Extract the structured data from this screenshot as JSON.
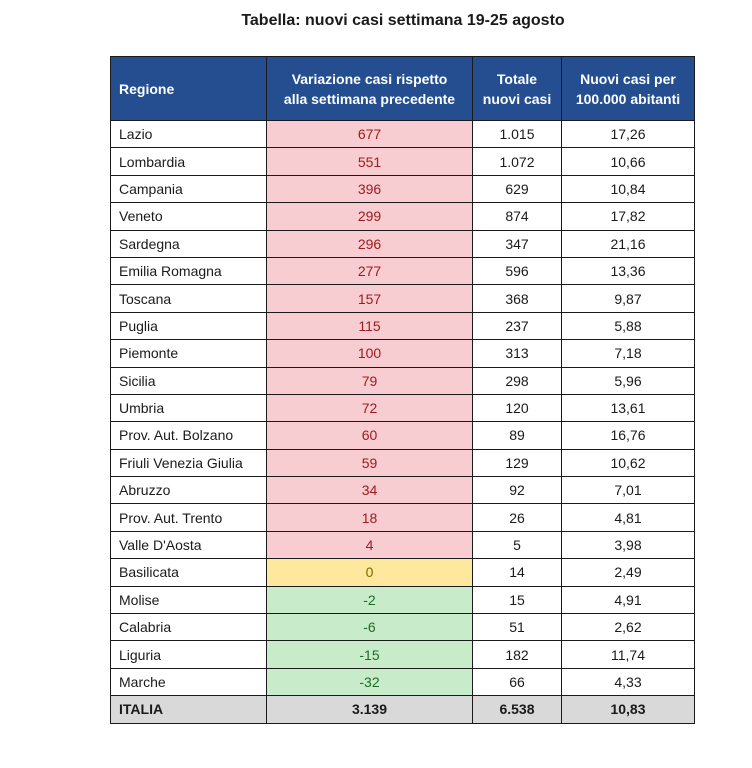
{
  "title": "Tabella: nuovi casi settimana 19-25 agosto",
  "table": {
    "headers": [
      "Regione",
      "Variazione casi rispetto alla settimana precedente",
      "Totale nuovi casi",
      "Nuovi casi per 100.000 abitanti"
    ],
    "header_lines": {
      "col2": [
        "Variazione casi rispetto",
        "alla settimana precedente"
      ],
      "col3": [
        "Totale",
        "nuovi casi"
      ],
      "col4": [
        "Nuovi casi per",
        "100.000 abitanti"
      ]
    },
    "rows": [
      {
        "region": "Lazio",
        "variation": "677",
        "total": "1.015",
        "per100k": "17,26",
        "trend": "pos"
      },
      {
        "region": "Lombardia",
        "variation": "551",
        "total": "1.072",
        "per100k": "10,66",
        "trend": "pos"
      },
      {
        "region": "Campania",
        "variation": "396",
        "total": "629",
        "per100k": "10,84",
        "trend": "pos"
      },
      {
        "region": "Veneto",
        "variation": "299",
        "total": "874",
        "per100k": "17,82",
        "trend": "pos"
      },
      {
        "region": "Sardegna",
        "variation": "296",
        "total": "347",
        "per100k": "21,16",
        "trend": "pos"
      },
      {
        "region": "Emilia Romagna",
        "variation": "277",
        "total": "596",
        "per100k": "13,36",
        "trend": "pos"
      },
      {
        "region": "Toscana",
        "variation": "157",
        "total": "368",
        "per100k": "9,87",
        "trend": "pos"
      },
      {
        "region": "Puglia",
        "variation": "115",
        "total": "237",
        "per100k": "5,88",
        "trend": "pos"
      },
      {
        "region": "Piemonte",
        "variation": "100",
        "total": "313",
        "per100k": "7,18",
        "trend": "pos"
      },
      {
        "region": "Sicilia",
        "variation": "79",
        "total": "298",
        "per100k": "5,96",
        "trend": "pos"
      },
      {
        "region": "Umbria",
        "variation": "72",
        "total": "120",
        "per100k": "13,61",
        "trend": "pos"
      },
      {
        "region": "Prov. Aut. Bolzano",
        "variation": "60",
        "total": "89",
        "per100k": "16,76",
        "trend": "pos"
      },
      {
        "region": "Friuli Venezia Giulia",
        "variation": "59",
        "total": "129",
        "per100k": "10,62",
        "trend": "pos"
      },
      {
        "region": "Abruzzo",
        "variation": "34",
        "total": "92",
        "per100k": "7,01",
        "trend": "pos"
      },
      {
        "region": "Prov. Aut. Trento",
        "variation": "18",
        "total": "26",
        "per100k": "4,81",
        "trend": "pos"
      },
      {
        "region": "Valle D'Aosta",
        "variation": "4",
        "total": "5",
        "per100k": "3,98",
        "trend": "pos"
      },
      {
        "region": "Basilicata",
        "variation": "0",
        "total": "14",
        "per100k": "2,49",
        "trend": "zero"
      },
      {
        "region": "Molise",
        "variation": "-2",
        "total": "15",
        "per100k": "4,91",
        "trend": "neg"
      },
      {
        "region": "Calabria",
        "variation": "-6",
        "total": "51",
        "per100k": "2,62",
        "trend": "neg"
      },
      {
        "region": "Liguria",
        "variation": "-15",
        "total": "182",
        "per100k": "11,74",
        "trend": "neg"
      },
      {
        "region": "Marche",
        "variation": "-32",
        "total": "66",
        "per100k": "4,33",
        "trend": "neg"
      }
    ],
    "total_row": {
      "region": "ITALIA",
      "variation": "3.139",
      "total": "6.538",
      "per100k": "10,83"
    }
  },
  "colors": {
    "header_bg": "#244e8f",
    "increase_bg": "#f8cdd2",
    "increase_text": "#9b1d20",
    "no_change_bg": "#fde89d",
    "decrease_bg": "#c8ecc9",
    "decrease_text": "#1d6b2b",
    "total_bg": "#d9d9d9"
  }
}
